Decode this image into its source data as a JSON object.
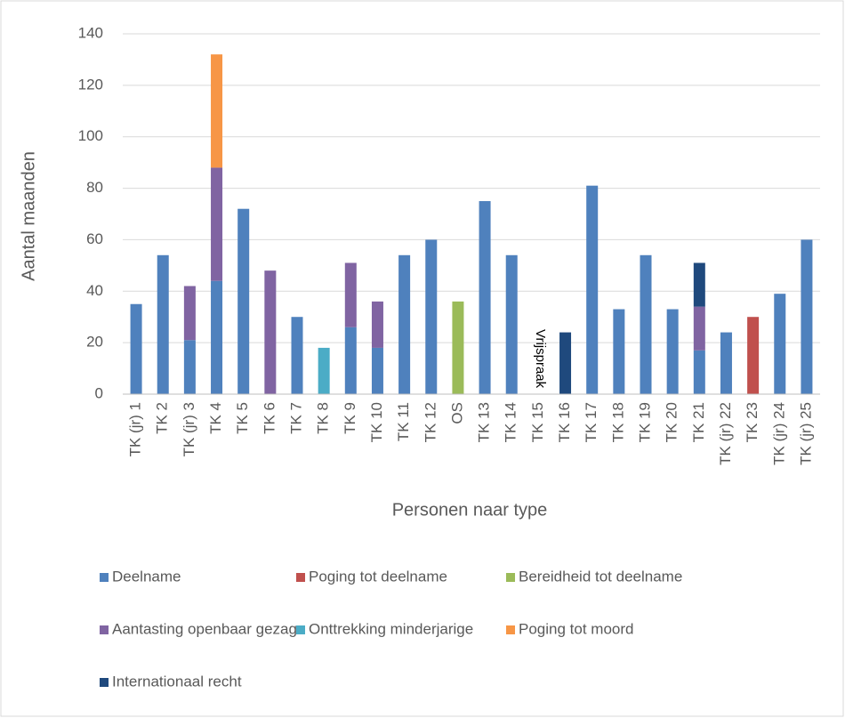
{
  "chart_data": {
    "type": "stacked_bar",
    "ylabel": "Aantal maanden",
    "xlabel": "Personen naar type",
    "annotation": "Vrijspraak",
    "categories": [
      "TK (jr) 1",
      "TK 2",
      "TK (jr) 3",
      "TK 4",
      "TK 5",
      "TK 6",
      "TK 7",
      "TK 8",
      "TK 9",
      "TK 10",
      "TK 11",
      "TK 12",
      "OS",
      "TK 13",
      "TK 14",
      "TK 15",
      "TK 16",
      "TK 17",
      "TK 18",
      "TK 19",
      "TK 20",
      "TK 21",
      "TK (jr) 22",
      "TK 23",
      "TK (jr) 24",
      "TK (jr) 25"
    ],
    "series": [
      {
        "name": "Deelname",
        "color": "#4f81bd",
        "values": [
          35,
          54,
          21,
          44,
          72,
          null,
          30,
          null,
          26,
          18,
          54,
          60,
          null,
          75,
          54,
          null,
          null,
          81,
          33,
          54,
          33,
          17,
          24,
          null,
          39,
          60
        ]
      },
      {
        "name": "Poging tot deelname",
        "color": "#c0504d",
        "values": [
          null,
          null,
          null,
          null,
          null,
          null,
          null,
          null,
          null,
          null,
          null,
          null,
          null,
          null,
          null,
          null,
          null,
          null,
          null,
          null,
          null,
          null,
          null,
          30,
          null,
          null
        ]
      },
      {
        "name": "Bereidheid tot deelname",
        "color": "#9bbb59",
        "values": [
          null,
          null,
          null,
          null,
          null,
          null,
          null,
          null,
          null,
          null,
          null,
          null,
          36,
          null,
          null,
          null,
          null,
          null,
          null,
          null,
          null,
          null,
          null,
          null,
          null,
          null
        ]
      },
      {
        "name": "Aantasting openbaar gezag",
        "color": "#8064a2",
        "values": [
          null,
          null,
          21,
          44,
          null,
          48,
          null,
          null,
          25,
          18,
          null,
          null,
          null,
          null,
          null,
          null,
          null,
          null,
          null,
          null,
          null,
          17,
          null,
          null,
          null,
          null
        ]
      },
      {
        "name": "Onttrekking minderjarige",
        "color": "#4bacc6",
        "values": [
          null,
          null,
          null,
          null,
          null,
          null,
          null,
          18,
          null,
          null,
          null,
          null,
          null,
          null,
          null,
          null,
          null,
          null,
          null,
          null,
          null,
          null,
          null,
          null,
          null,
          null
        ]
      },
      {
        "name": "Poging tot moord",
        "color": "#f79646",
        "values": [
          null,
          null,
          null,
          44,
          null,
          null,
          null,
          null,
          null,
          null,
          null,
          null,
          null,
          null,
          null,
          null,
          null,
          null,
          null,
          null,
          null,
          null,
          null,
          null,
          null,
          null
        ]
      },
      {
        "name": "Internationaal recht",
        "color": "#1f497d",
        "values": [
          null,
          null,
          null,
          null,
          null,
          null,
          null,
          null,
          null,
          null,
          null,
          null,
          null,
          null,
          null,
          null,
          24,
          null,
          null,
          null,
          null,
          17,
          null,
          null,
          null,
          null
        ]
      }
    ],
    "ylim": [
      0,
      140
    ],
    "yticks": [
      0,
      20,
      40,
      60,
      80,
      100,
      120,
      140
    ],
    "grid": true
  }
}
